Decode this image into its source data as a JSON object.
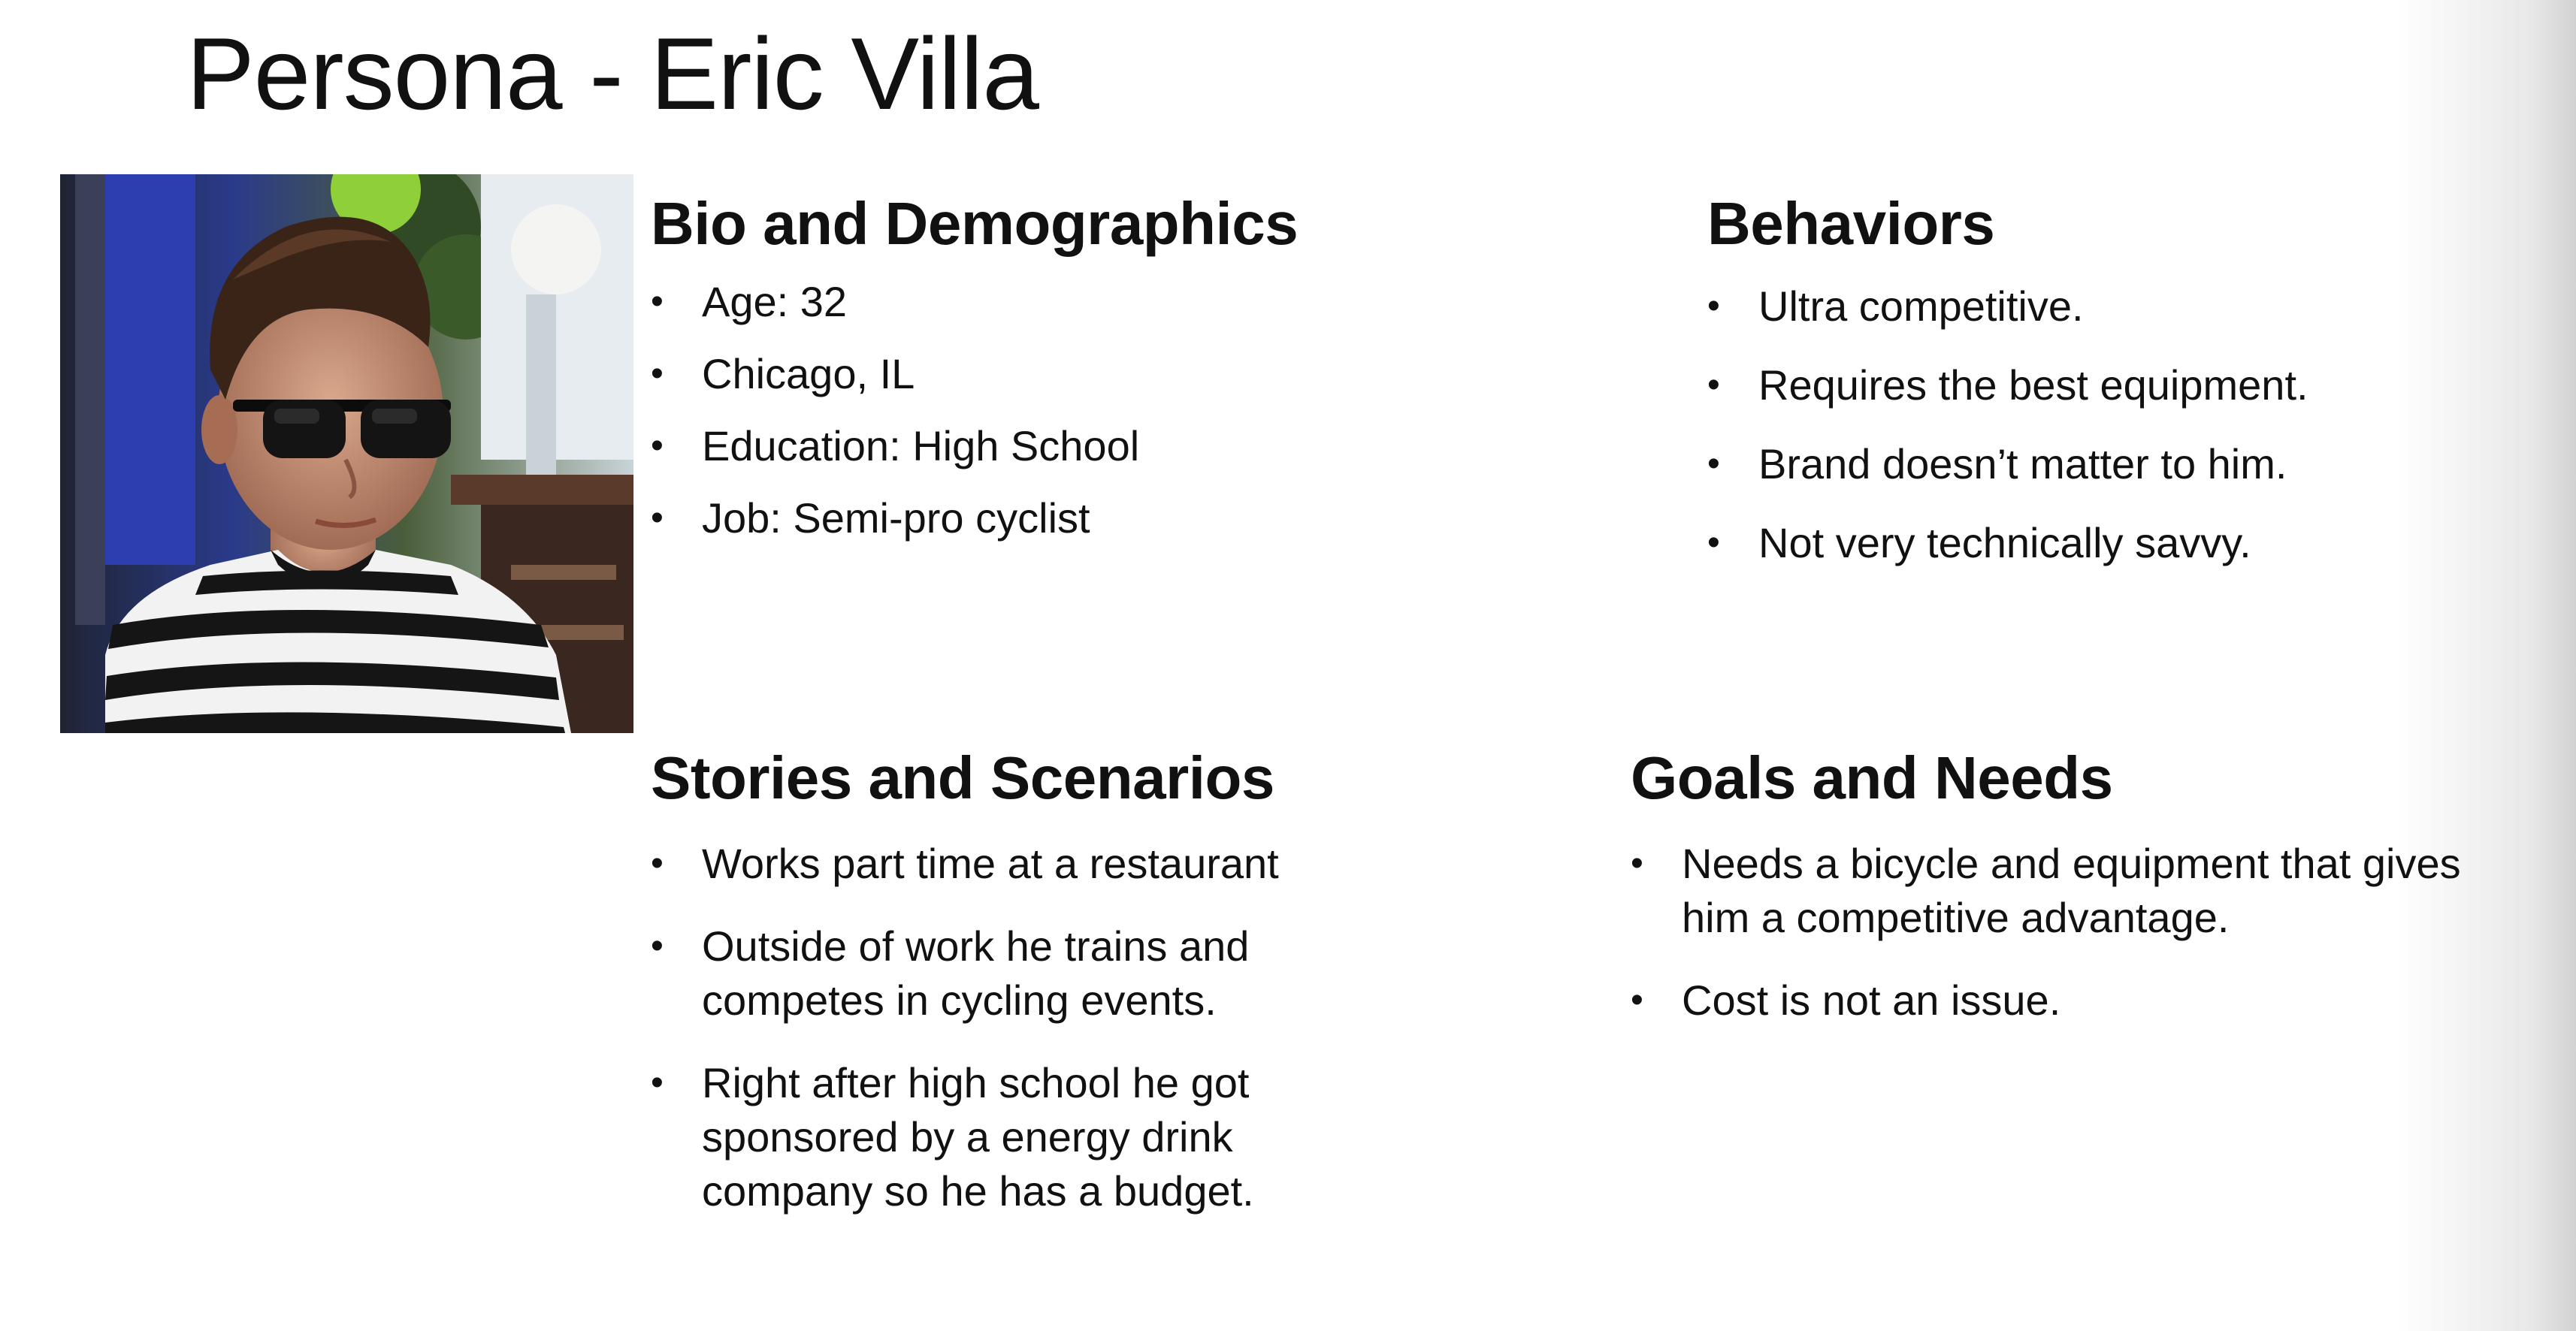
{
  "title": {
    "prefix": "Persona - ",
    "name": "Eric Villa"
  },
  "photo": {
    "icon": "persona-photo"
  },
  "sections": {
    "bio": {
      "heading": "Bio and Demographics",
      "items": [
        "Age: 32",
        "Chicago, IL",
        "Education: High School",
        "Job:  Semi-pro cyclist"
      ]
    },
    "behaviors": {
      "heading": "Behaviors",
      "items": [
        "Ultra competitive.",
        "Requires the best equipment.",
        "Brand doesn’t matter to him.",
        "Not very technically savvy."
      ]
    },
    "stories": {
      "heading": "Stories and Scenarios",
      "items": [
        "Works part time at a restaurant",
        "Outside of work he trains and competes in cycling events.",
        "Right after high school he got sponsored by a energy drink company so he has a budget."
      ]
    },
    "goals": {
      "heading": "Goals and Needs",
      "items": [
        "Needs a bicycle and equipment that gives him a competitive advantage.",
        "Cost is not an issue."
      ]
    }
  }
}
